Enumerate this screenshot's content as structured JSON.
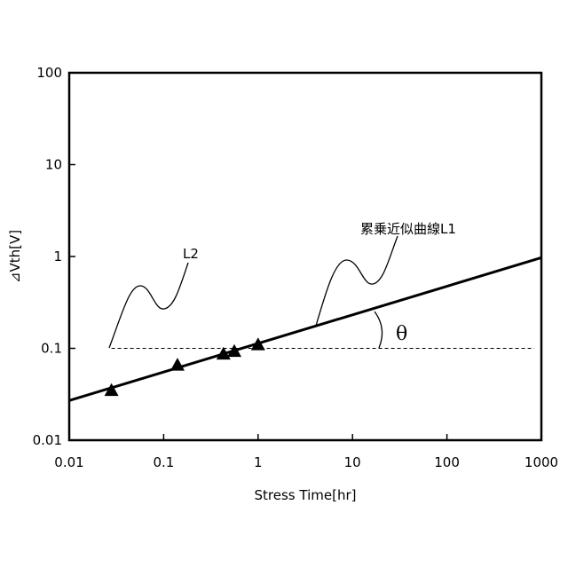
{
  "chart_data": {
    "type": "scatter",
    "xscale": "log",
    "yscale": "log",
    "xlim": [
      0.01,
      1000
    ],
    "ylim": [
      0.01,
      100
    ],
    "xticks": [
      {
        "value": 0.01,
        "label": "0.01"
      },
      {
        "value": 0.1,
        "label": "0.1"
      },
      {
        "value": 1,
        "label": "1"
      },
      {
        "value": 10,
        "label": "10"
      },
      {
        "value": 100,
        "label": "100"
      },
      {
        "value": 1000,
        "label": "1000"
      }
    ],
    "yticks": [
      {
        "value": 0.01,
        "label": "0.01"
      },
      {
        "value": 0.1,
        "label": "0.1"
      },
      {
        "value": 1,
        "label": "1"
      },
      {
        "value": 10,
        "label": "10"
      },
      {
        "value": 100,
        "label": "100"
      }
    ],
    "xlabel": "Stress Time[hr]",
    "ylabel": "⊿Vth[V]",
    "grid": false,
    "points": [
      {
        "x": 0.028,
        "y": 0.035
      },
      {
        "x": 0.14,
        "y": 0.066
      },
      {
        "x": 0.43,
        "y": 0.087
      },
      {
        "x": 0.56,
        "y": 0.093
      },
      {
        "x": 1.0,
        "y": 0.11
      }
    ],
    "fit_line": {
      "label": "累乗近似曲線L1",
      "x": [
        0.01,
        1000
      ],
      "y": [
        0.027,
        0.97
      ]
    },
    "reference_line": {
      "label": "L2",
      "y": 0.1,
      "x": [
        0.028,
        1000
      ],
      "style": "dashed"
    },
    "angle_label": "θ"
  }
}
